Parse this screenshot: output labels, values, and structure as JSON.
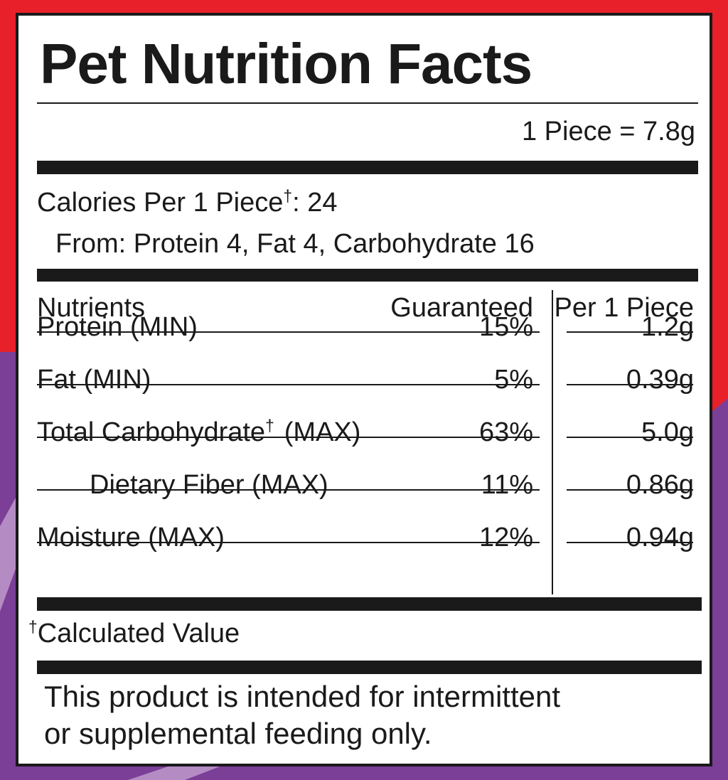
{
  "header": {
    "title": "Pet Nutrition Facts",
    "serving": "1 Piece = 7.8g"
  },
  "calories": {
    "label": "Calories Per 1 Piece",
    "dagger": "†",
    "value": ": 24",
    "from": "From: Protein 4, Fat 4, Carbohydrate 16"
  },
  "table": {
    "headers": [
      "Nutrients",
      "Guaranteed",
      "Per 1 Piece"
    ],
    "rows": [
      {
        "nutrient": "Protein (MIN)",
        "guaranteed": "15%",
        "per_piece": "1.2g"
      },
      {
        "nutrient": "Fat (MIN)",
        "guaranteed": "5%",
        "per_piece": "0.39g"
      },
      {
        "nutrient": "Total Carbohydrate",
        "dagger": "†",
        "qualifier": "(MAX)",
        "guaranteed": "63%",
        "per_piece": "5.0g"
      },
      {
        "nutrient": "Dietary Fiber (MAX)",
        "guaranteed": "11%",
        "per_piece": "0.86g"
      },
      {
        "nutrient": "Moisture (MAX)",
        "guaranteed": "12%",
        "per_piece": "0.94g"
      }
    ]
  },
  "footnote": {
    "dagger": "†",
    "text": "Calculated Value"
  },
  "disclaimer": [
    "This product is intended for intermittent",
    "or supplemental feeding only."
  ]
}
